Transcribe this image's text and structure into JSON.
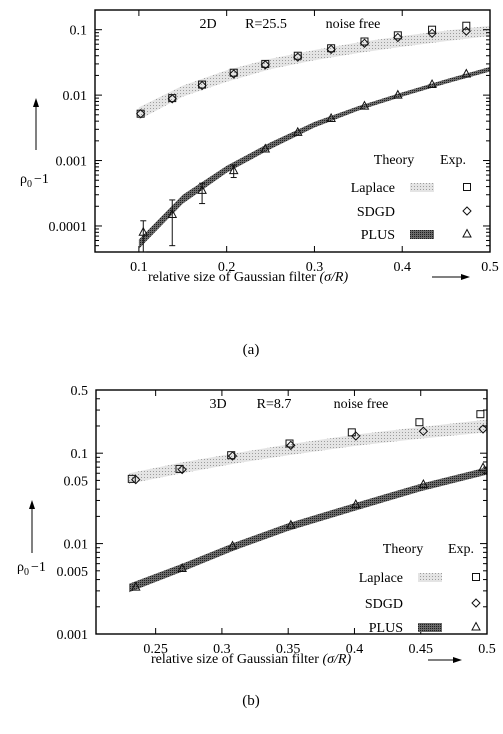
{
  "chart_data": [
    {
      "type": "scatter",
      "panel": "a",
      "caption": "(a)",
      "annotation": [
        "2D",
        "R=25.5",
        "noise free"
      ],
      "xlabel": "relative size of Gaussian filter",
      "xlabel_math": "(σ/R)",
      "ylabel_main": "ρ",
      "ylabel_sub": "0",
      "ylabel_suffix": "−1",
      "y_scale": "log",
      "xlim": [
        0.05,
        0.5
      ],
      "ylim": [
        4e-05,
        0.2
      ],
      "x_ticks": [
        0.1,
        0.2,
        0.3,
        0.4,
        0.5
      ],
      "x_tick_labels": [
        "0.1",
        "0.2",
        "0.3",
        "0.4",
        "0.5"
      ],
      "y_ticks": [
        0.0001,
        0.001,
        0.01,
        0.1
      ],
      "y_tick_labels": [
        "0.0001",
        "0.001",
        "0.01",
        "0.1"
      ],
      "legend": {
        "placement": "bottom-right",
        "theory_header": "Theory",
        "exp_header": "Exp.",
        "entries": [
          "Laplace",
          "SDGD",
          "PLUS"
        ]
      },
      "series": [
        {
          "name": "Laplace",
          "marker": "square",
          "x": [
            0.102,
            0.138,
            0.172,
            0.208,
            0.244,
            0.281,
            0.319,
            0.357,
            0.395,
            0.434,
            0.473
          ],
          "y": [
            0.0052,
            0.009,
            0.0145,
            0.022,
            0.03,
            0.04,
            0.052,
            0.066,
            0.082,
            0.1,
            0.115
          ]
        },
        {
          "name": "SDGD",
          "marker": "diamond",
          "x": [
            0.102,
            0.138,
            0.172,
            0.208,
            0.244,
            0.281,
            0.319,
            0.357,
            0.395,
            0.434,
            0.473
          ],
          "y": [
            0.0052,
            0.0088,
            0.014,
            0.021,
            0.029,
            0.038,
            0.05,
            0.062,
            0.076,
            0.088,
            0.095
          ]
        },
        {
          "name": "PLUS",
          "marker": "triangle",
          "x": [
            0.105,
            0.138,
            0.172,
            0.208,
            0.244,
            0.281,
            0.319,
            0.357,
            0.395,
            0.434,
            0.473
          ],
          "y": [
            8e-05,
            0.00015,
            0.00035,
            0.0007,
            0.0015,
            0.0027,
            0.0044,
            0.0068,
            0.01,
            0.0145,
            0.021
          ],
          "err_low": [
            4e-05,
            5e-05,
            0.00022,
            0.00055,
            null,
            null,
            null,
            null,
            null,
            null,
            null
          ],
          "err_high": [
            0.00012,
            0.00025,
            0.00045,
            0.00085,
            null,
            null,
            null,
            null,
            null,
            null,
            null
          ]
        }
      ],
      "theory_bands": [
        {
          "name": "Laplace",
          "color": "#c9c9c9",
          "x": [
            0.1,
            0.15,
            0.2,
            0.25,
            0.3,
            0.35,
            0.4,
            0.45,
            0.5
          ],
          "low": [
            0.0042,
            0.0095,
            0.016,
            0.025,
            0.034,
            0.044,
            0.055,
            0.067,
            0.08
          ],
          "high": [
            0.0065,
            0.014,
            0.024,
            0.036,
            0.049,
            0.064,
            0.08,
            0.097,
            0.115
          ]
        },
        {
          "name": "PLUS",
          "color": "#555555",
          "x": [
            0.1,
            0.15,
            0.2,
            0.25,
            0.3,
            0.35,
            0.4,
            0.45,
            0.5
          ],
          "low": [
            4.5e-05,
            0.00022,
            0.00065,
            0.0015,
            0.0032,
            0.0058,
            0.0095,
            0.015,
            0.023
          ],
          "high": [
            6.2e-05,
            0.0003,
            0.00083,
            0.0019,
            0.0039,
            0.0068,
            0.011,
            0.0175,
            0.027
          ]
        }
      ]
    },
    {
      "type": "scatter",
      "panel": "b",
      "caption": "(b)",
      "annotation": [
        "3D",
        "R=8.7",
        "noise free"
      ],
      "xlabel": "relative size of Gaussian filter",
      "xlabel_math": "(σ/R)",
      "ylabel_main": "ρ",
      "ylabel_sub": "0",
      "ylabel_suffix": "−1",
      "y_scale": "log",
      "xlim": [
        0.205,
        0.5
      ],
      "ylim": [
        0.001,
        0.5
      ],
      "x_ticks": [
        0.25,
        0.3,
        0.35,
        0.4,
        0.45,
        0.5
      ],
      "x_tick_labels": [
        "0.25",
        "0.3",
        "0.35",
        "0.4",
        "0.45",
        "0.5"
      ],
      "y_ticks": [
        0.001,
        0.005,
        0.01,
        0.05,
        0.1,
        0.5
      ],
      "y_tick_labels": [
        "0.001",
        "0.005",
        "0.01",
        "0.05",
        "0.1",
        "0.5"
      ],
      "legend": {
        "placement": "bottom-right",
        "theory_header": "Theory",
        "exp_header": "Exp.",
        "entries": [
          "Laplace",
          "SDGD",
          "PLUS"
        ]
      },
      "series": [
        {
          "name": "Laplace",
          "marker": "square",
          "x": [
            0.232,
            0.268,
            0.307,
            0.351,
            0.398,
            0.449,
            0.495
          ],
          "y": [
            0.052,
            0.067,
            0.095,
            0.128,
            0.17,
            0.22,
            0.27
          ]
        },
        {
          "name": "SDGD",
          "marker": "diamond",
          "x": [
            0.235,
            0.27,
            0.308,
            0.352,
            0.401,
            0.452,
            0.497
          ],
          "y": [
            0.051,
            0.066,
            0.093,
            0.122,
            0.155,
            0.175,
            0.185
          ]
        },
        {
          "name": "PLUS",
          "marker": "triangle",
          "x": [
            0.235,
            0.27,
            0.308,
            0.352,
            0.401,
            0.452,
            0.497
          ],
          "y": [
            0.0033,
            0.0053,
            0.0094,
            0.016,
            0.027,
            0.045,
            0.069
          ]
        }
      ],
      "theory_bands": [
        {
          "name": "Laplace",
          "color": "#c9c9c9",
          "x": [
            0.23,
            0.27,
            0.31,
            0.35,
            0.4,
            0.45,
            0.5
          ],
          "low": [
            0.046,
            0.06,
            0.077,
            0.095,
            0.12,
            0.145,
            0.17
          ],
          "high": [
            0.06,
            0.079,
            0.1,
            0.125,
            0.16,
            0.195,
            0.235
          ]
        },
        {
          "name": "PLUS",
          "color": "#555555",
          "x": [
            0.23,
            0.27,
            0.31,
            0.35,
            0.4,
            0.45,
            0.5
          ],
          "low": [
            0.0029,
            0.0049,
            0.0085,
            0.0138,
            0.023,
            0.038,
            0.058
          ],
          "high": [
            0.0036,
            0.006,
            0.0103,
            0.0168,
            0.028,
            0.046,
            0.07
          ]
        }
      ]
    }
  ]
}
